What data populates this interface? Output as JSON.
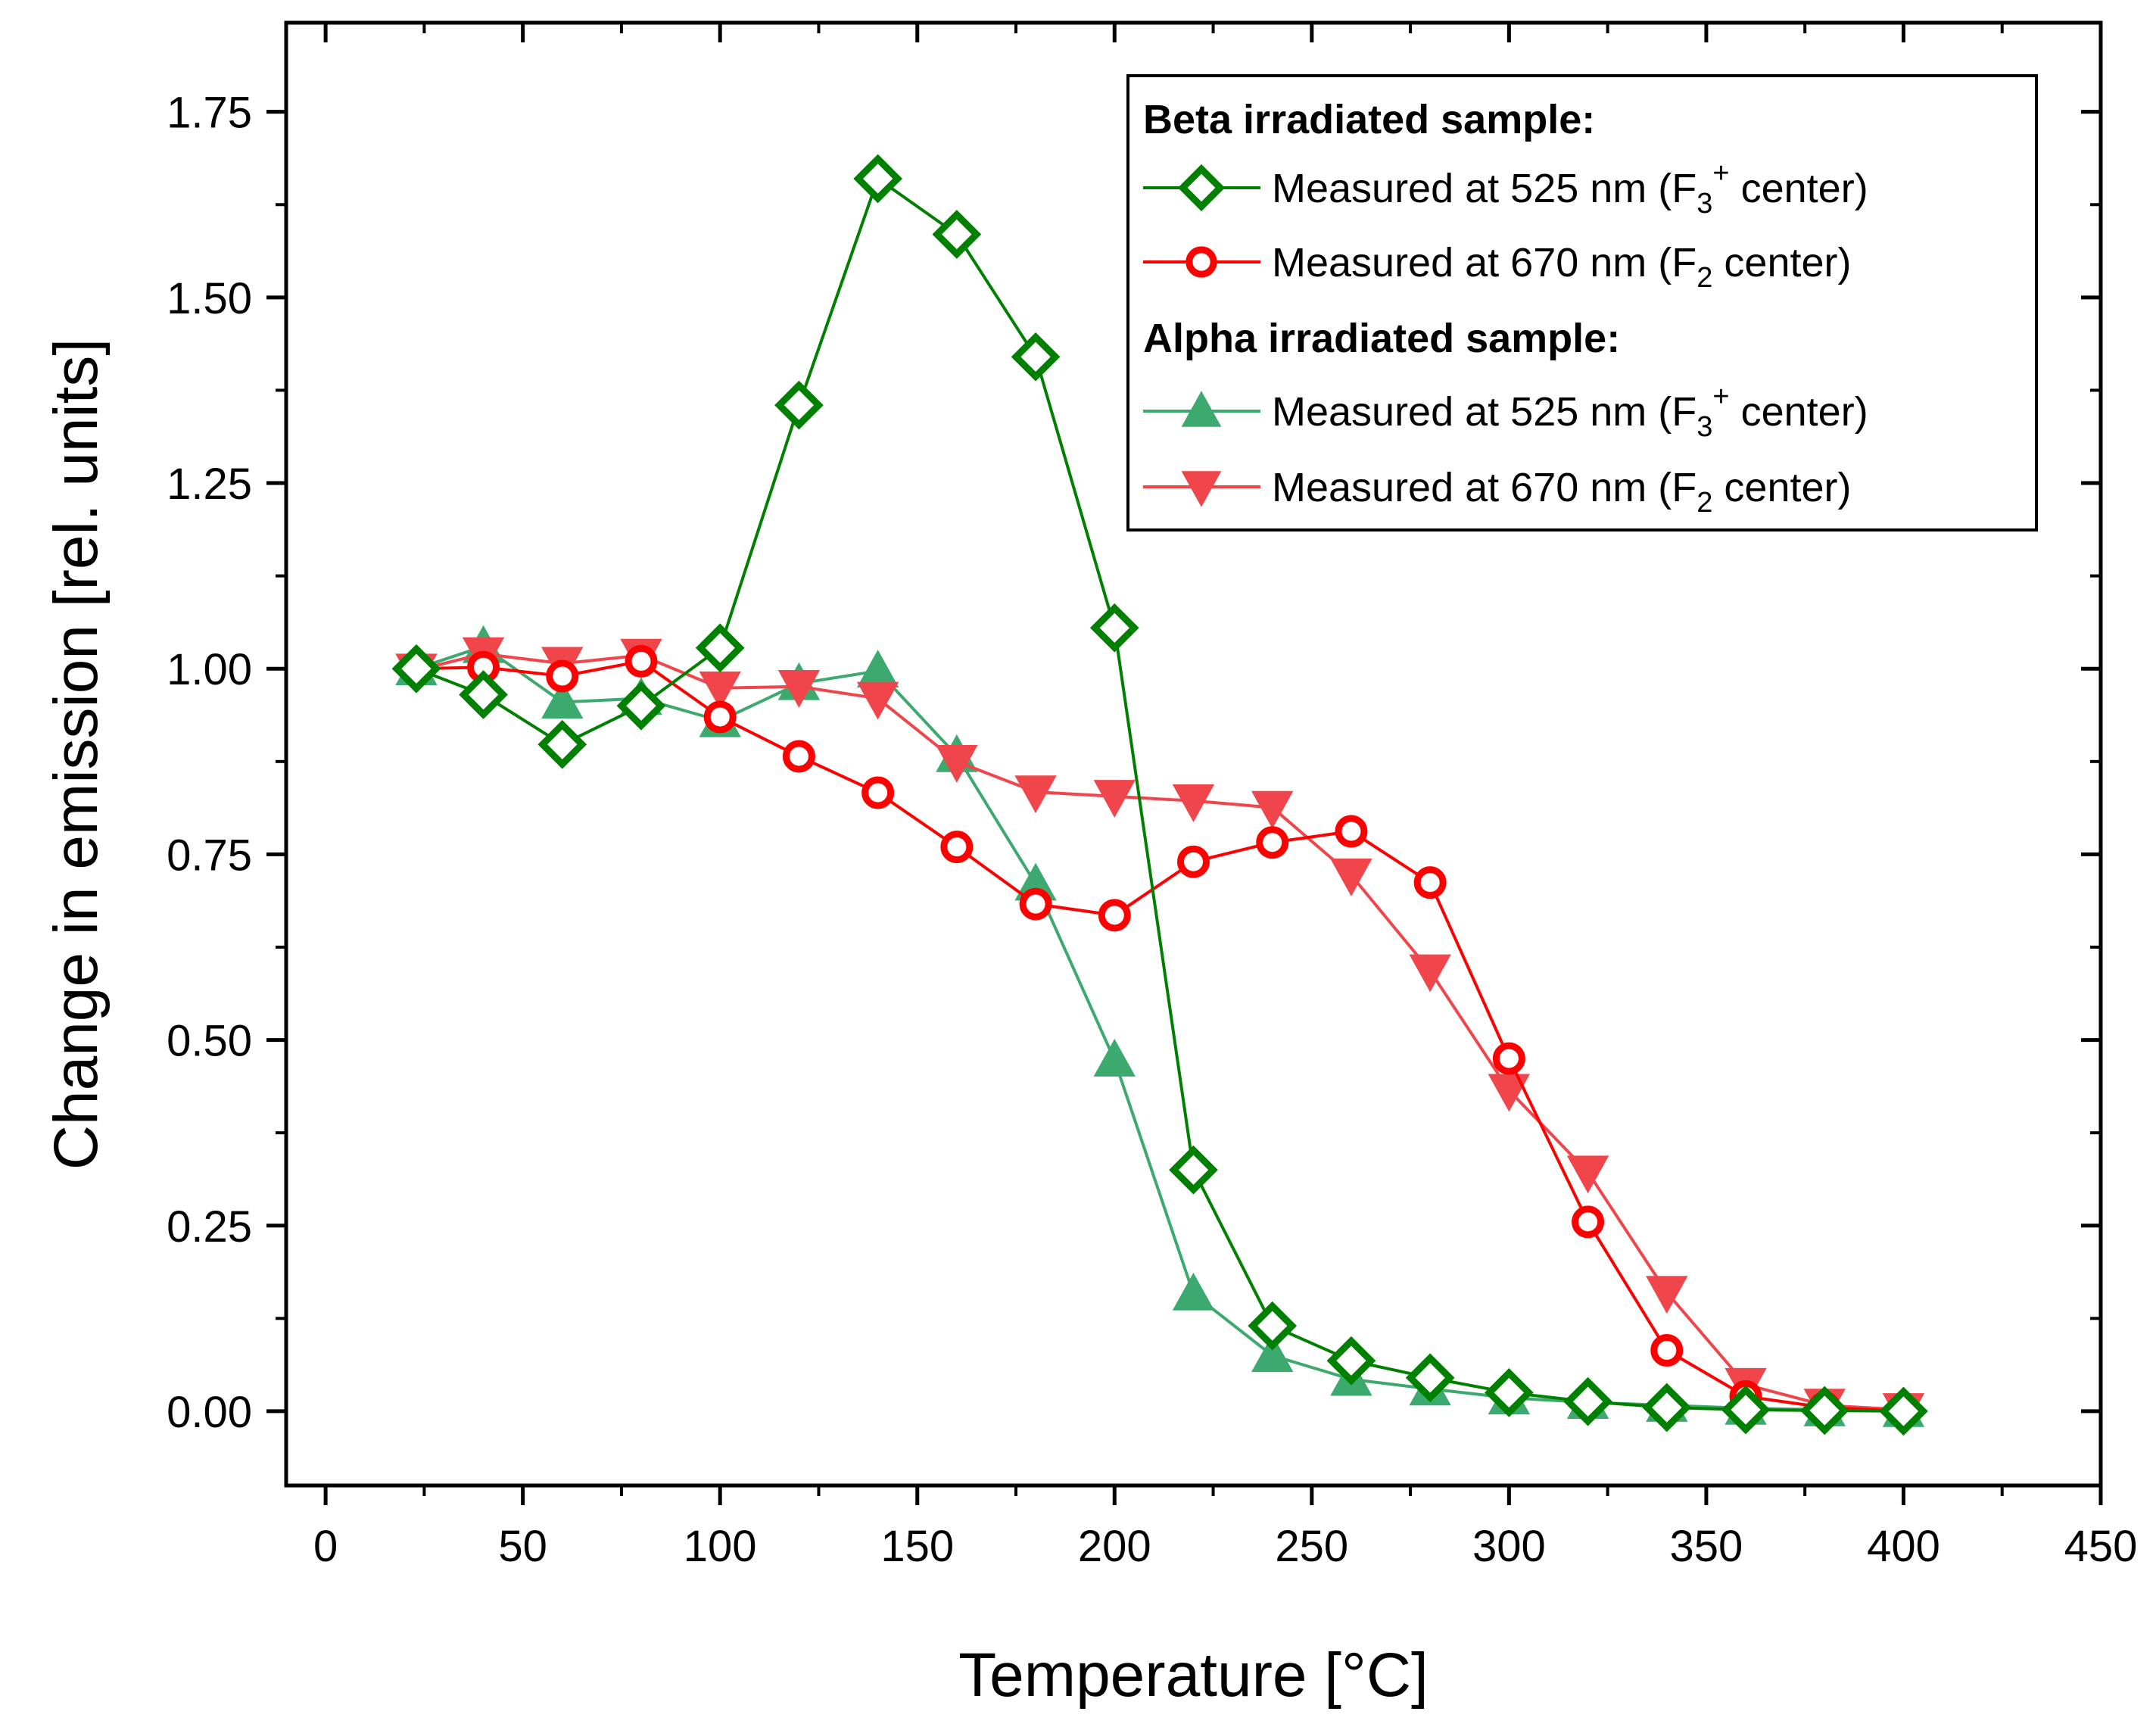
{
  "chart_data": {
    "type": "line",
    "xlabel": "Temperature [°C]",
    "ylabel": "Change in emission [rel. units]",
    "xlim": [
      -10,
      450
    ],
    "ylim": [
      -0.1,
      1.87
    ],
    "xticks": [
      0,
      50,
      100,
      150,
      200,
      250,
      300,
      350,
      400,
      450
    ],
    "xtick_labels": [
      "0",
      "50",
      "100",
      "150",
      "200",
      "250",
      "300",
      "350",
      "400",
      "450"
    ],
    "yticks": [
      0,
      0.25,
      0.5,
      0.75,
      1.0,
      1.25,
      1.5,
      1.75
    ],
    "ytick_labels": [
      "0.00",
      "0.25",
      "0.50",
      "0.75",
      "1.00",
      "1.25",
      "1.50",
      "1.75"
    ],
    "legend_position": "top-right",
    "legend": {
      "group1_title": "Beta irradiated sample:",
      "group2_title": "Alpha irradiated sample:",
      "entries": [
        {
          "series": 0,
          "prefix": "Measured at 525 nm (F",
          "sub": "3",
          "sup": "+",
          "suffix": " center)"
        },
        {
          "series": 1,
          "prefix": "Measured at 670 nm (F",
          "sub": "2",
          "sup": "",
          "suffix": " center)"
        },
        {
          "series": 2,
          "prefix": "Measured at 525 nm (F",
          "sub": "3",
          "sup": "+",
          "suffix": " center)"
        },
        {
          "series": 3,
          "prefix": "Measured at 670 nm (F",
          "sub": "2",
          "sup": "",
          "suffix": " center)"
        }
      ]
    },
    "series": [
      {
        "name": "Beta - Measured at 525 nm (F3+ center)",
        "marker": "diamond-open",
        "color": "#008000",
        "x": [
          23,
          40,
          60,
          80,
          100,
          120,
          140,
          160,
          180,
          200,
          220,
          240,
          260,
          280,
          300,
          320,
          340,
          360,
          380,
          400
        ],
        "values": [
          1.0,
          0.965,
          0.898,
          0.95,
          1.028,
          1.355,
          1.66,
          1.585,
          1.42,
          1.055,
          0.325,
          0.115,
          0.068,
          0.045,
          0.025,
          0.013,
          0.005,
          0.002,
          0.001,
          0.0
        ]
      },
      {
        "name": "Beta - Measured at 670 nm (F2 center)",
        "marker": "circle-open",
        "color": "#ff0000",
        "x": [
          23,
          40,
          60,
          80,
          100,
          120,
          140,
          160,
          180,
          200,
          220,
          240,
          260,
          280,
          300,
          320,
          340,
          360,
          380,
          400
        ],
        "values": [
          1.0,
          1.002,
          0.99,
          1.01,
          0.935,
          0.882,
          0.833,
          0.76,
          0.683,
          0.668,
          0.74,
          0.766,
          0.781,
          0.712,
          0.475,
          0.255,
          0.082,
          0.02,
          0.005,
          0.0
        ]
      },
      {
        "name": "Alpha - Measured at 525 nm (F3+ center)",
        "marker": "triangle-up",
        "color": "#3caa6e",
        "x": [
          23,
          40,
          60,
          80,
          100,
          120,
          140,
          160,
          180,
          200,
          220,
          240,
          260,
          280,
          300,
          320,
          340,
          360,
          380,
          400
        ],
        "values": [
          1.0,
          1.03,
          0.955,
          0.96,
          0.93,
          0.98,
          0.997,
          0.883,
          0.71,
          0.473,
          0.158,
          0.075,
          0.043,
          0.03,
          0.018,
          0.012,
          0.008,
          0.004,
          0.002,
          0.001
        ]
      },
      {
        "name": "Alpha - Measured at 670 nm (F2 center)",
        "marker": "triangle-down",
        "color": "#f0464b",
        "x": [
          23,
          40,
          60,
          80,
          100,
          120,
          140,
          160,
          180,
          200,
          220,
          240,
          260,
          280,
          300,
          320,
          340,
          360,
          380,
          400
        ],
        "values": [
          0.998,
          1.02,
          1.007,
          1.018,
          0.974,
          0.976,
          0.96,
          0.875,
          0.834,
          0.828,
          0.822,
          0.813,
          0.722,
          0.593,
          0.432,
          0.322,
          0.16,
          0.036,
          0.008,
          0.002
        ]
      }
    ]
  }
}
